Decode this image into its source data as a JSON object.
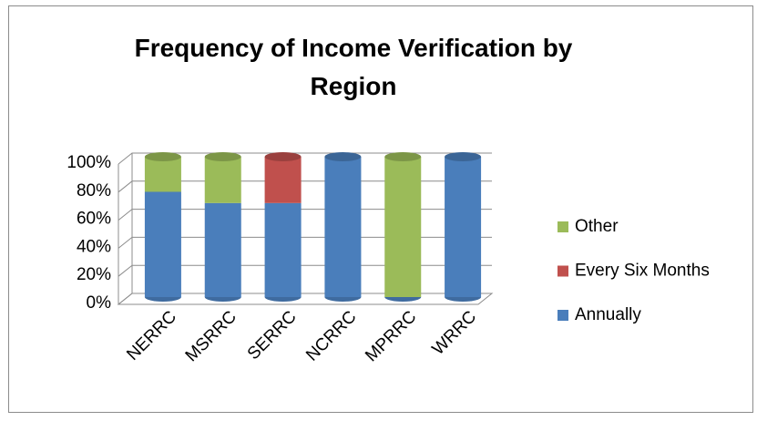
{
  "chart_data": {
    "type": "stacked_bar",
    "title": "Frequency of Income Verification by Region",
    "categories": [
      "NERRC",
      "MSRRC",
      "SERRC",
      "NCRRC",
      "MPRRC",
      "WRRC"
    ],
    "series": [
      {
        "name": "Annually",
        "color": "#4a7ebb",
        "values": [
          75,
          67,
          67,
          100,
          0,
          100
        ]
      },
      {
        "name": "Every Six Months",
        "color": "#c0504d",
        "values": [
          0,
          0,
          33,
          0,
          0,
          0
        ]
      },
      {
        "name": "Other",
        "color": "#9bbb59",
        "values": [
          25,
          33,
          0,
          0,
          100,
          0
        ]
      }
    ],
    "ylim": [
      0,
      100
    ],
    "yticks": [
      {
        "value": 0,
        "label": "0%"
      },
      {
        "value": 20,
        "label": "20%"
      },
      {
        "value": 40,
        "label": "40%"
      },
      {
        "value": 60,
        "label": "60%"
      },
      {
        "value": 80,
        "label": "80%"
      },
      {
        "value": 100,
        "label": "100%"
      }
    ],
    "grid": true,
    "legend": "right"
  }
}
